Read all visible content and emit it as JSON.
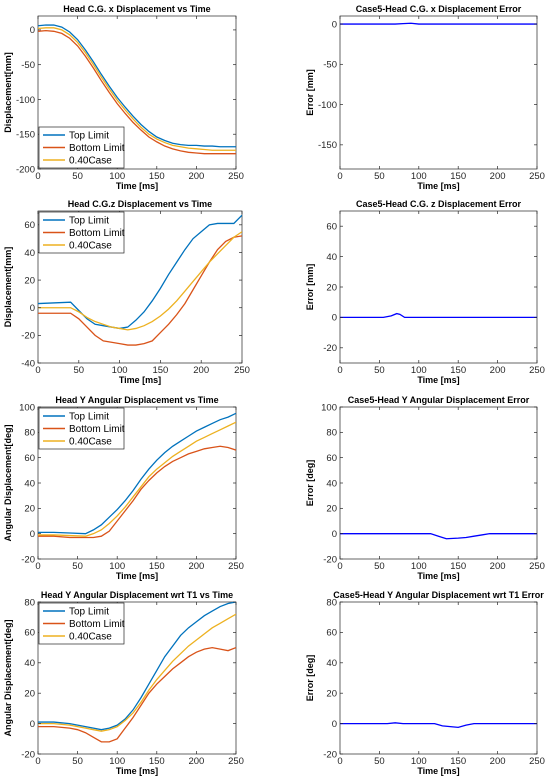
{
  "chart_data": [
    {
      "type": "line",
      "title": "Head C.G. x Displacement vs Time",
      "xlabel": "Time [ms]",
      "ylabel": "Displacement[mm]",
      "xlim": [
        0,
        250
      ],
      "ylim": [
        -200,
        20
      ],
      "xticks": [
        0,
        50,
        100,
        150,
        200,
        250
      ],
      "yticks": [
        -200,
        -150,
        -100,
        -50,
        0
      ],
      "legend": "bottom-left",
      "series": [
        {
          "name": "Top Limit",
          "color": "#0072BD",
          "x": [
            0,
            10,
            20,
            30,
            40,
            50,
            60,
            70,
            80,
            90,
            100,
            110,
            120,
            130,
            140,
            150,
            160,
            170,
            180,
            190,
            200,
            210,
            220,
            230,
            240,
            250
          ],
          "y": [
            6,
            7,
            7,
            4,
            -3,
            -14,
            -29,
            -46,
            -64,
            -81,
            -97,
            -111,
            -124,
            -136,
            -146,
            -154,
            -159,
            -163,
            -165,
            -166,
            -166,
            -167,
            -167,
            -168,
            -168,
            -168
          ]
        },
        {
          "name": "Bottom Limit",
          "color": "#D95319",
          "x": [
            0,
            10,
            20,
            30,
            40,
            50,
            60,
            70,
            80,
            90,
            100,
            110,
            120,
            130,
            140,
            150,
            160,
            170,
            180,
            190,
            200,
            210,
            220,
            230,
            240,
            250
          ],
          "y": [
            -2,
            -1,
            -2,
            -5,
            -12,
            -23,
            -38,
            -55,
            -73,
            -90,
            -106,
            -120,
            -133,
            -144,
            -154,
            -161,
            -167,
            -171,
            -174,
            -176,
            -177,
            -178,
            -178,
            -178,
            -178,
            -178
          ]
        },
        {
          "name": "0.40Case",
          "color": "#EDB120",
          "x": [
            0,
            10,
            20,
            30,
            40,
            50,
            60,
            70,
            80,
            90,
            100,
            110,
            120,
            130,
            140,
            150,
            160,
            170,
            180,
            190,
            200,
            210,
            220,
            230,
            240,
            250
          ],
          "y": [
            2,
            3,
            3,
            0,
            -7,
            -18,
            -33,
            -50,
            -68,
            -85,
            -101,
            -115,
            -128,
            -140,
            -150,
            -157,
            -162,
            -166,
            -168,
            -170,
            -171,
            -172,
            -173,
            -173,
            -173,
            -173
          ]
        }
      ]
    },
    {
      "type": "line",
      "title": "Case5-Head C.G. x Displacement Error",
      "xlabel": "Time [ms]",
      "ylabel": "Error [mm]",
      "xlim": [
        0,
        250
      ],
      "ylim": [
        -180,
        10
      ],
      "xticks": [
        0,
        50,
        100,
        150,
        200,
        250
      ],
      "yticks": [
        -150,
        -100,
        -50,
        0
      ],
      "series": [
        {
          "name": "",
          "color": "#0000FF",
          "x": [
            0,
            70,
            80,
            90,
            100,
            250
          ],
          "y": [
            0,
            0,
            0.5,
            1,
            0,
            0
          ]
        }
      ]
    },
    {
      "type": "line",
      "title": "Head C.G.z Displacement vs Time",
      "xlabel": "Time [ms]",
      "ylabel": "Displacement[mm]",
      "xlim": [
        0,
        250
      ],
      "ylim": [
        -40,
        70
      ],
      "xticks": [
        0,
        50,
        100,
        150,
        200,
        250
      ],
      "yticks": [
        -40,
        -20,
        0,
        20,
        40,
        60
      ],
      "legend": "top-left",
      "series": [
        {
          "name": "Top Limit",
          "color": "#0072BD",
          "x": [
            0,
            40,
            50,
            60,
            70,
            80,
            90,
            100,
            110,
            120,
            130,
            140,
            150,
            160,
            170,
            180,
            190,
            200,
            210,
            220,
            230,
            240,
            250
          ],
          "y": [
            3,
            4,
            -2,
            -8,
            -12,
            -13,
            -14,
            -15,
            -14,
            -9,
            -3,
            5,
            14,
            24,
            33,
            42,
            50,
            55,
            60,
            61,
            61,
            61,
            67
          ]
        },
        {
          "name": "Bottom Limit",
          "color": "#D95319",
          "x": [
            0,
            40,
            50,
            60,
            70,
            80,
            90,
            100,
            110,
            120,
            130,
            140,
            150,
            160,
            170,
            180,
            190,
            200,
            210,
            220,
            230,
            240,
            250
          ],
          "y": [
            -4,
            -4,
            -8,
            -14,
            -20,
            -24,
            -25,
            -26,
            -27,
            -27,
            -26,
            -24,
            -18,
            -12,
            -5,
            3,
            13,
            23,
            33,
            42,
            48,
            51,
            52
          ]
        },
        {
          "name": "0.40Case",
          "color": "#EDB120",
          "x": [
            0,
            40,
            50,
            60,
            70,
            80,
            90,
            100,
            110,
            120,
            130,
            140,
            150,
            160,
            170,
            180,
            190,
            200,
            210,
            220,
            230,
            240,
            250
          ],
          "y": [
            0,
            0,
            -3,
            -7,
            -10,
            -12,
            -14,
            -15,
            -16,
            -15,
            -13,
            -10,
            -6,
            -1,
            5,
            12,
            19,
            26,
            33,
            39,
            45,
            51,
            55
          ]
        }
      ]
    },
    {
      "type": "line",
      "title": "Case5-Head C.G. z Displacement Error",
      "xlabel": "Time [ms]",
      "ylabel": "Error [mm]",
      "xlim": [
        0,
        250
      ],
      "ylim": [
        -30,
        70
      ],
      "xticks": [
        0,
        50,
        100,
        150,
        200,
        250
      ],
      "yticks": [
        -20,
        0,
        20,
        40,
        60
      ],
      "series": [
        {
          "name": "",
          "color": "#0000FF",
          "x": [
            0,
            55,
            65,
            72,
            76,
            82,
            250
          ],
          "y": [
            0,
            0,
            1,
            2.5,
            2,
            0,
            0
          ]
        }
      ]
    },
    {
      "type": "line",
      "title": "Head Y Angular Displacement vs Time",
      "xlabel": "Time [ms]",
      "ylabel": "Angular Displacement[deg]",
      "xlim": [
        0,
        250
      ],
      "ylim": [
        -20,
        100
      ],
      "xticks": [
        0,
        50,
        100,
        150,
        200,
        250
      ],
      "yticks": [
        -20,
        0,
        20,
        40,
        60,
        80,
        100
      ],
      "legend": "top-left",
      "series": [
        {
          "name": "Top Limit",
          "color": "#0072BD",
          "x": [
            0,
            20,
            40,
            60,
            70,
            80,
            90,
            100,
            110,
            120,
            130,
            140,
            150,
            160,
            170,
            180,
            190,
            200,
            210,
            220,
            230,
            240,
            250
          ],
          "y": [
            1,
            1,
            0.5,
            0,
            3,
            7,
            13,
            19,
            26,
            34,
            43,
            51,
            58,
            64,
            69,
            73,
            77,
            81,
            84,
            87,
            90,
            92,
            95
          ]
        },
        {
          "name": "Bottom Limit",
          "color": "#D95319",
          "x": [
            0,
            20,
            40,
            60,
            70,
            80,
            90,
            100,
            110,
            120,
            130,
            140,
            150,
            160,
            170,
            180,
            190,
            200,
            210,
            220,
            230,
            240,
            250
          ],
          "y": [
            -2,
            -2,
            -3,
            -3,
            -3,
            -2,
            2,
            10,
            18,
            26,
            35,
            42,
            48,
            53,
            57,
            60,
            63,
            65,
            67,
            68,
            69,
            68,
            66
          ]
        },
        {
          "name": "0.40Case",
          "color": "#EDB120",
          "x": [
            0,
            20,
            40,
            60,
            70,
            80,
            90,
            100,
            110,
            120,
            130,
            140,
            150,
            160,
            170,
            180,
            190,
            200,
            210,
            220,
            230,
            240,
            250
          ],
          "y": [
            -1,
            -1,
            -1.5,
            -2,
            0,
            3,
            8,
            14,
            21,
            29,
            37,
            45,
            51,
            56,
            61,
            65,
            69,
            73,
            76,
            79,
            82,
            85,
            88
          ]
        }
      ]
    },
    {
      "type": "line",
      "title": "Case5-Head Y Angular Displacement Error",
      "xlabel": "Time [ms]",
      "ylabel": "Error [deg]",
      "xlim": [
        0,
        250
      ],
      "ylim": [
        -20,
        100
      ],
      "xticks": [
        0,
        50,
        100,
        150,
        200,
        250
      ],
      "yticks": [
        -20,
        0,
        20,
        40,
        60,
        80,
        100
      ],
      "series": [
        {
          "name": "",
          "color": "#0000FF",
          "x": [
            0,
            115,
            125,
            135,
            150,
            160,
            170,
            180,
            190,
            200,
            250
          ],
          "y": [
            0,
            0,
            -2,
            -4,
            -3.5,
            -3,
            -2,
            -1,
            0,
            0,
            0
          ]
        }
      ]
    },
    {
      "type": "line",
      "title": "Head Y Angular Displacement wrt T1 vs Time",
      "xlabel": "Time [ms]",
      "ylabel": "Angular Displacement[deg]",
      "xlim": [
        0,
        250
      ],
      "ylim": [
        -20,
        80
      ],
      "xticks": [
        0,
        50,
        100,
        150,
        200,
        250
      ],
      "yticks": [
        -20,
        0,
        20,
        40,
        60,
        80
      ],
      "legend": "top-left",
      "series": [
        {
          "name": "Top Limit",
          "color": "#0072BD",
          "x": [
            0,
            20,
            40,
            50,
            60,
            70,
            80,
            90,
            100,
            110,
            120,
            130,
            140,
            150,
            160,
            170,
            180,
            190,
            200,
            210,
            220,
            230,
            240,
            250
          ],
          "y": [
            1,
            1,
            0,
            -1,
            -2,
            -3,
            -4,
            -3,
            -1,
            3,
            9,
            17,
            26,
            35,
            44,
            51,
            58,
            63,
            67,
            71,
            74,
            77,
            79,
            80
          ]
        },
        {
          "name": "Bottom Limit",
          "color": "#D95319",
          "x": [
            0,
            20,
            40,
            50,
            60,
            70,
            80,
            90,
            100,
            110,
            120,
            130,
            140,
            150,
            160,
            170,
            180,
            190,
            200,
            210,
            220,
            230,
            240,
            250
          ],
          "y": [
            -2,
            -2,
            -3,
            -4,
            -6,
            -9,
            -12,
            -12,
            -10,
            -3,
            4,
            12,
            20,
            26,
            31,
            36,
            40,
            44,
            47,
            49,
            50,
            49,
            48,
            50
          ]
        },
        {
          "name": "0.40Case",
          "color": "#EDB120",
          "x": [
            0,
            20,
            40,
            50,
            60,
            70,
            80,
            90,
            100,
            110,
            120,
            130,
            140,
            150,
            160,
            170,
            180,
            190,
            200,
            210,
            220,
            230,
            240,
            250
          ],
          "y": [
            0,
            0,
            -1,
            -2,
            -3,
            -4,
            -5,
            -4,
            -2,
            2,
            7,
            14,
            22,
            29,
            35,
            41,
            46,
            51,
            55,
            59,
            63,
            66,
            69,
            72
          ]
        }
      ]
    },
    {
      "type": "line",
      "title": "Case5-Head Y Angular Displacement wrt T1 Error",
      "xlabel": "Time [ms]",
      "ylabel": "Error [deg]",
      "xlim": [
        0,
        250
      ],
      "ylim": [
        -20,
        80
      ],
      "xticks": [
        0,
        50,
        100,
        150,
        200,
        250
      ],
      "yticks": [
        -20,
        0,
        20,
        40,
        60,
        80
      ],
      "series": [
        {
          "name": "",
          "color": "#0000FF",
          "x": [
            0,
            60,
            70,
            80,
            120,
            130,
            140,
            150,
            160,
            170,
            250
          ],
          "y": [
            0,
            0,
            0.5,
            0,
            0,
            -1.5,
            -2,
            -2.5,
            -1,
            0,
            0
          ]
        }
      ]
    }
  ]
}
